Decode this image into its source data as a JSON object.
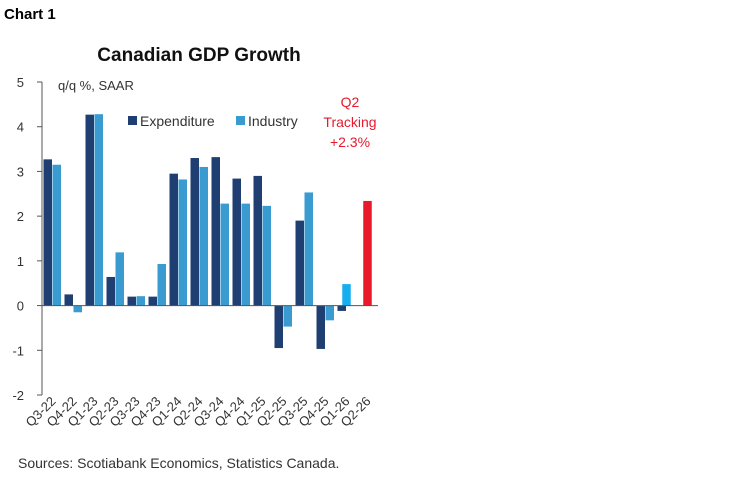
{
  "header": {
    "label": "Chart 1"
  },
  "chart_data": {
    "type": "bar",
    "title": "Canadian GDP Growth",
    "ylabel": "q/q %, SAAR",
    "ylim": [
      -2,
      5
    ],
    "yticks": [
      "-2",
      "-1",
      "0",
      "1",
      "2",
      "3",
      "4",
      "5"
    ],
    "categories": [
      "Q3-22",
      "Q4-22",
      "Q1-23",
      "Q2-23",
      "Q3-23",
      "Q4-23",
      "Q1-24",
      "Q2-24",
      "Q3-24",
      "Q4-24",
      "Q1-25",
      "Q2-25",
      "Q3-25",
      "Q4-25",
      "Q1-26",
      "Q2-26"
    ],
    "series": [
      {
        "name": "Expenditure",
        "color": "#1f3f73",
        "values": [
          3.27,
          0.25,
          4.27,
          0.64,
          0.2,
          0.2,
          2.95,
          3.3,
          3.32,
          2.84,
          2.9,
          -0.95,
          1.9,
          -0.97,
          -0.12,
          null
        ]
      },
      {
        "name": "Industry",
        "color": "#3a9bd1",
        "values": [
          3.15,
          -0.15,
          4.28,
          1.19,
          0.21,
          0.93,
          2.82,
          3.1,
          2.28,
          2.28,
          2.23,
          -0.47,
          2.53,
          -0.33,
          null,
          null
        ]
      }
    ],
    "highlights": [
      {
        "category": "Q1-26",
        "value": 0.48,
        "color": "#17aef0"
      },
      {
        "category": "Q2-26",
        "value": 2.34,
        "color": "#e8192c"
      }
    ],
    "annotation": {
      "lines": [
        "Q2",
        "Tracking",
        "+2.3%"
      ],
      "color": "#e8192c"
    },
    "legend_position": "top",
    "grid": false
  },
  "footer": {
    "source": "Sources: Scotiabank Economics, Statistics Canada."
  }
}
